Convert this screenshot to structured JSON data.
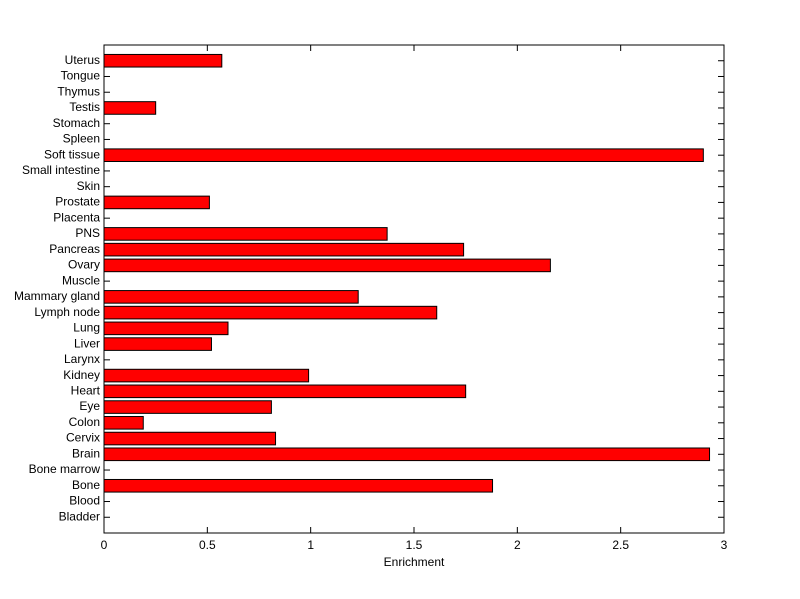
{
  "chart_data": {
    "type": "barh",
    "xlabel": "Enrichment",
    "categories": [
      "Bladder",
      "Blood",
      "Bone",
      "Bone marrow",
      "Brain",
      "Cervix",
      "Colon",
      "Eye",
      "Heart",
      "Kidney",
      "Larynx",
      "Liver",
      "Lung",
      "Lymph node",
      "Mammary gland",
      "Muscle",
      "Ovary",
      "Pancreas",
      "PNS",
      "Placenta",
      "Prostate",
      "Skin",
      "Small intestine",
      "Soft tissue",
      "Spleen",
      "Stomach",
      "Testis",
      "Thymus",
      "Tongue",
      "Uterus"
    ],
    "values": [
      0,
      0,
      1.88,
      0,
      2.93,
      0.83,
      0.19,
      0.81,
      1.75,
      0.99,
      0,
      0.52,
      0.6,
      1.61,
      1.23,
      0,
      2.16,
      1.74,
      1.37,
      0,
      0.51,
      0,
      0,
      2.9,
      0,
      0,
      0.25,
      0,
      0,
      0.57
    ],
    "color": "#ff0000",
    "xlim": [
      0,
      3
    ],
    "xticks": [
      0,
      0.5,
      1,
      1.5,
      2,
      2.5,
      3
    ],
    "grid": false
  }
}
